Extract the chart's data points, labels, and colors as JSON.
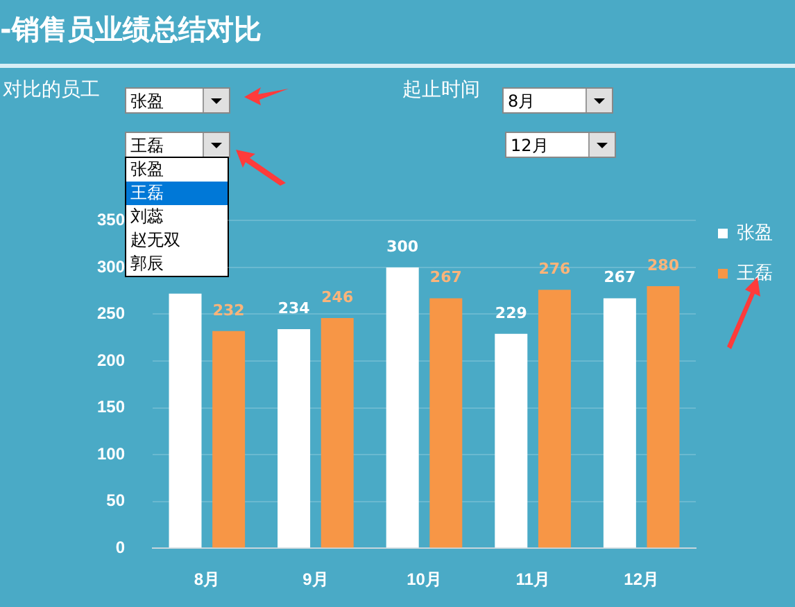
{
  "chart_data": {
    "type": "bar",
    "title": "-销售员业绩总结对比",
    "categories": [
      "8月",
      "9月",
      "10月",
      "11月",
      "12月"
    ],
    "series": [
      {
        "name": "张盈",
        "color": "#ffffff",
        "values": [
          272,
          234,
          300,
          229,
          267
        ],
        "value_labels": [
          null,
          "234",
          "300",
          "229",
          "267"
        ]
      },
      {
        "name": "王磊",
        "color": "#f79646",
        "values": [
          232,
          246,
          267,
          276,
          280
        ],
        "value_labels": [
          "232",
          "246",
          "267",
          "276",
          "280"
        ]
      }
    ],
    "ylim": [
      0,
      350
    ],
    "yticks": [
      0,
      50,
      100,
      150,
      200,
      250,
      300,
      350
    ],
    "grid": "y",
    "legend": "right",
    "annotations": [
      "对比的员工",
      "张盈",
      "王磊",
      "张盈",
      "王磊",
      "刘蕊",
      "赵无双",
      "郭辰",
      "起止时间",
      "8月",
      "12月"
    ]
  }
}
